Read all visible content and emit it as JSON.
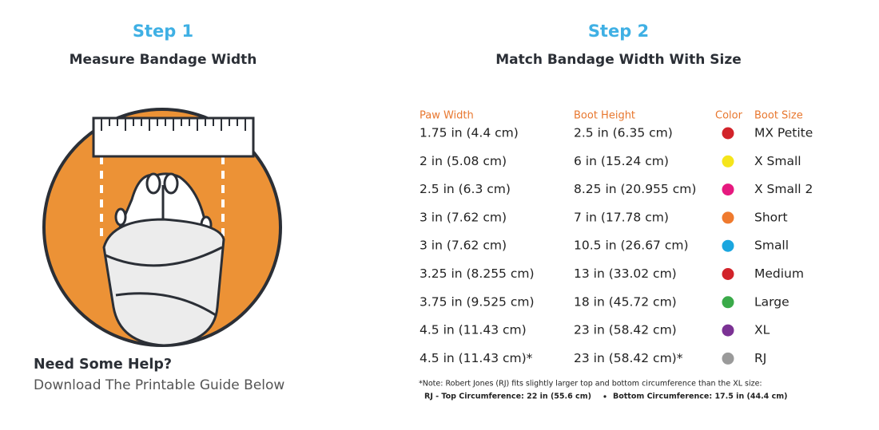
{
  "step1": {
    "label": "Step 1",
    "title": "Measure Bandage Width"
  },
  "help": {
    "title": "Need Some Help?",
    "text": "Download The Printable Guide Below"
  },
  "step2": {
    "label": "Step 2",
    "title": "Match Bandage Width With Size"
  },
  "table": {
    "headers": [
      "Paw Width",
      "Boot Height",
      "Color",
      "Boot Size"
    ],
    "rows": [
      {
        "paw_width": "1.75 in (4.4 cm)",
        "boot_height": "2.5 in (6.35 cm)",
        "color": "#d2232a",
        "boot_size": "MX Petite"
      },
      {
        "paw_width": "2 in (5.08 cm)",
        "boot_height": "6 in (15.24 cm)",
        "color": "#f5e51b",
        "boot_size": "X Small"
      },
      {
        "paw_width": "2.5 in (6.3 cm)",
        "boot_height": "8.25 in (20.955 cm)",
        "color": "#e6197f",
        "boot_size": "X Small 2"
      },
      {
        "paw_width": "3 in (7.62 cm)",
        "boot_height": "7 in (17.78 cm)",
        "color": "#ef7a2e",
        "boot_size": "Short"
      },
      {
        "paw_width": "3 in (7.62 cm)",
        "boot_height": "10.5 in (26.67 cm)",
        "color": "#1aa6df",
        "boot_size": "Small"
      },
      {
        "paw_width": "3.25 in (8.255 cm)",
        "boot_height": "13 in (33.02 cm)",
        "color": "#d2232a",
        "boot_size": "Medium"
      },
      {
        "paw_width": "3.75 in (9.525 cm)",
        "boot_height": "18 in (45.72 cm)",
        "color": "#3aaa49",
        "boot_size": "Large"
      },
      {
        "paw_width": "4.5 in (11.43 cm)",
        "boot_height": "23 in (58.42 cm)",
        "color": "#7b3294",
        "boot_size": "XL"
      },
      {
        "paw_width": "4.5 in (11.43 cm)*",
        "boot_height": "23 in (58.42 cm)*",
        "color": "#9a9a9a",
        "boot_size": "RJ"
      }
    ]
  },
  "note": {
    "text": "*Note: Robert Jones (RJ) fits slightly larger top and bottom circumference than the XL size:",
    "top": "RJ - Top Circumference: 22 in (55.6 cm)",
    "bottom": "Bottom Circumference: 17.5 in (44.4 cm)"
  }
}
